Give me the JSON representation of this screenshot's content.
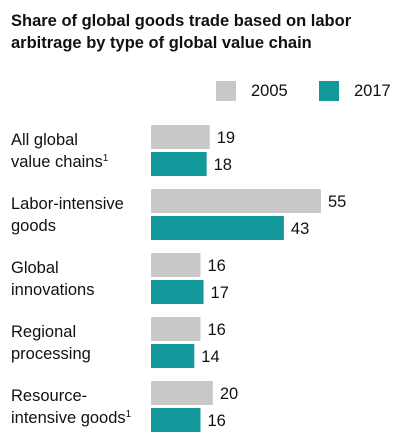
{
  "title": "Share of global goods trade based on labor arbitrage by type of global value chain",
  "legend": [
    {
      "label": "2005",
      "color": "#c8c8c8"
    },
    {
      "label": "2017",
      "color": "#13999b"
    }
  ],
  "chart_data": {
    "type": "bar",
    "orientation": "horizontal",
    "title": "Share of global goods trade based on labor arbitrage by type of global value chain",
    "categories": [
      {
        "line1": "All global",
        "line2": "value chains",
        "footnote": "1"
      },
      {
        "line1": "Labor-intensive",
        "line2": "goods",
        "footnote": ""
      },
      {
        "line1": "Global",
        "line2": "innovations",
        "footnote": ""
      },
      {
        "line1": "Regional",
        "line2": "processing",
        "footnote": ""
      },
      {
        "line1": "Resource-",
        "line2": "intensive goods",
        "footnote": "1"
      }
    ],
    "series": [
      {
        "name": "2005",
        "color": "#c8c8c8",
        "values": [
          19,
          55,
          16,
          16,
          20
        ]
      },
      {
        "name": "2017",
        "color": "#13999b",
        "values": [
          18,
          43,
          17,
          14,
          16
        ]
      }
    ],
    "xlim": [
      0,
      55
    ],
    "legend_position": "top-right",
    "grid": false
  }
}
